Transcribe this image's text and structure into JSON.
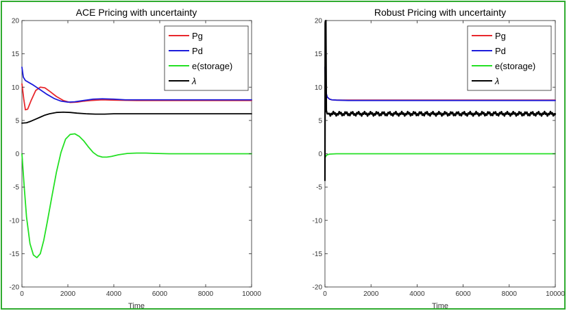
{
  "chart_data": [
    {
      "type": "line",
      "title": "ACE Pricing with uncertainty",
      "xlabel": "Time",
      "ylabel": "",
      "xlim": [
        0,
        10000
      ],
      "ylim": [
        -20,
        20
      ],
      "xticks": [
        0,
        2000,
        4000,
        6000,
        8000,
        10000
      ],
      "yticks": [
        -20,
        -15,
        -10,
        -5,
        0,
        5,
        10,
        15,
        20
      ],
      "legend_position": "top-right",
      "series": [
        {
          "name": "Pg",
          "color": "#e8262b",
          "x": [
            0,
            80,
            150,
            250,
            400,
            600,
            800,
            1000,
            1200,
            1500,
            1800,
            2100,
            2400,
            2700,
            3000,
            3500,
            4000,
            5000,
            6000,
            8000,
            10000
          ],
          "y": [
            10.5,
            8.2,
            6.6,
            6.7,
            8.0,
            9.5,
            10.0,
            9.9,
            9.4,
            8.6,
            8.0,
            7.7,
            7.75,
            7.9,
            8.0,
            8.1,
            8.05,
            8.0,
            8.0,
            8.0,
            8.0
          ]
        },
        {
          "name": "Pd",
          "color": "#1a1adb",
          "x": [
            0,
            60,
            150,
            300,
            500,
            800,
            1100,
            1400,
            1700,
            2000,
            2300,
            2700,
            3100,
            3500,
            4000,
            4500,
            5000,
            6000,
            8000,
            10000
          ],
          "y": [
            13.0,
            11.5,
            11.0,
            10.7,
            10.3,
            9.6,
            8.9,
            8.3,
            7.9,
            7.75,
            7.8,
            8.0,
            8.2,
            8.25,
            8.2,
            8.1,
            8.1,
            8.1,
            8.1,
            8.1
          ]
        },
        {
          "name": "e(storage)",
          "color": "#22e022",
          "x": [
            0,
            100,
            200,
            350,
            500,
            650,
            800,
            950,
            1100,
            1300,
            1500,
            1700,
            1900,
            2100,
            2300,
            2500,
            2700,
            2900,
            3100,
            3300,
            3500,
            3700,
            3900,
            4200,
            4600,
            5000,
            5400,
            5800,
            6400,
            7000,
            8000,
            9000,
            10000
          ],
          "y": [
            0,
            -5.0,
            -9.5,
            -13.5,
            -15.2,
            -15.6,
            -15.0,
            -13.0,
            -10.3,
            -6.5,
            -2.8,
            0.2,
            2.2,
            2.9,
            3.0,
            2.6,
            1.9,
            1.0,
            0.2,
            -0.3,
            -0.5,
            -0.5,
            -0.4,
            -0.15,
            0.05,
            0.1,
            0.1,
            0.05,
            0.0,
            0.0,
            0.0,
            0.0,
            0.0
          ]
        },
        {
          "name": "λ",
          "color": "#000000",
          "x": [
            0,
            200,
            400,
            600,
            800,
            1000,
            1200,
            1500,
            1800,
            2100,
            2400,
            2800,
            3200,
            3600,
            4000,
            5000,
            6000,
            8000,
            10000
          ],
          "y": [
            4.6,
            4.65,
            4.9,
            5.2,
            5.5,
            5.8,
            6.0,
            6.2,
            6.25,
            6.2,
            6.1,
            6.0,
            5.95,
            5.95,
            6.0,
            6.0,
            6.0,
            6.0,
            6.0
          ]
        }
      ]
    },
    {
      "type": "line",
      "title": "Robust Pricing with uncertainty",
      "xlabel": "Time",
      "ylabel": "",
      "xlim": [
        0,
        10000
      ],
      "ylim": [
        -20,
        20
      ],
      "xticks": [
        0,
        2000,
        4000,
        6000,
        8000,
        10000
      ],
      "yticks": [
        -20,
        -15,
        -10,
        -5,
        0,
        5,
        10,
        15,
        20
      ],
      "legend_position": "top-right",
      "series": [
        {
          "name": "Pg",
          "color": "#e8262b",
          "x": [
            0,
            20,
            50,
            100,
            200,
            300,
            500,
            1000,
            2000,
            4000,
            6000,
            8000,
            10000
          ],
          "y": [
            10.0,
            9.6,
            9.0,
            8.5,
            8.2,
            8.1,
            8.05,
            8.05,
            8.05,
            8.05,
            8.05,
            8.05,
            8.05
          ]
        },
        {
          "name": "Pd",
          "color": "#1a1adb",
          "x": [
            0,
            20,
            50,
            100,
            200,
            300,
            500,
            1000,
            2000,
            4000,
            6000,
            8000,
            10000
          ],
          "y": [
            13.0,
            10.5,
            9.2,
            8.5,
            8.2,
            8.1,
            8.05,
            8.0,
            8.0,
            8.0,
            8.0,
            8.0,
            8.0
          ]
        },
        {
          "name": "e(storage)",
          "color": "#22e022",
          "x": [
            0,
            50,
            100,
            200,
            500,
            1000,
            2000,
            4000,
            6000,
            8000,
            10000
          ],
          "y": [
            -0.6,
            -0.3,
            -0.15,
            -0.05,
            0.0,
            0.0,
            0.0,
            0.0,
            0.0,
            0.0,
            0.0
          ]
        },
        {
          "name": "λ",
          "color": "#000000",
          "x": [
            0,
            10,
            30,
            40,
            60,
            100,
            150,
            200,
            10000
          ],
          "y": [
            -4.0,
            19.8,
            10.0,
            20.0,
            6.5,
            6.0,
            6.0,
            6.0,
            6.0
          ],
          "noise_amplitude": 0.35
        }
      ]
    }
  ]
}
